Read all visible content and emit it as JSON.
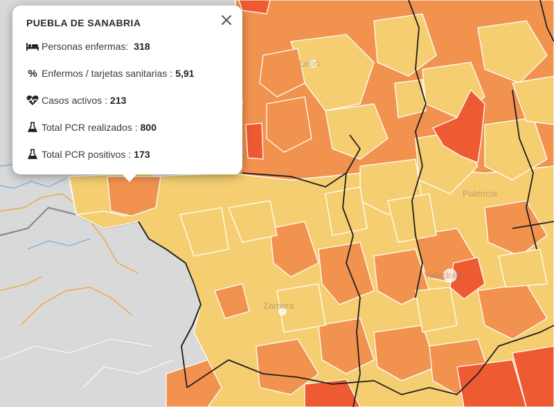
{
  "map": {
    "labels": {
      "leon": "León",
      "palencia": "Palencia",
      "valladolid": "Valladolid",
      "zamora": "Zamora"
    },
    "colors": {
      "light": "#f5ce72",
      "mid": "#f2924f",
      "dark": "#ee5a32",
      "base": "#d6d6d6",
      "border": "#1e1e1e"
    }
  },
  "popup": {
    "title": "PUEBLA DE SANABRIA",
    "rows": [
      {
        "icon": "bed-icon",
        "label": "Personas enfermas:",
        "sep": "",
        "value": "318"
      },
      {
        "icon": "percent-icon",
        "label": "Enfermos / tarjetas sanitarias",
        "sep": ":",
        "value": "5,91"
      },
      {
        "icon": "heartbeat-icon",
        "label": "Casos activos",
        "sep": ":",
        "value": "213"
      },
      {
        "icon": "flask-icon",
        "label": "Total PCR realizados",
        "sep": ":",
        "value": "800"
      },
      {
        "icon": "flask-icon",
        "label": "Total PCR positivos",
        "sep": ":",
        "value": "173"
      }
    ]
  }
}
